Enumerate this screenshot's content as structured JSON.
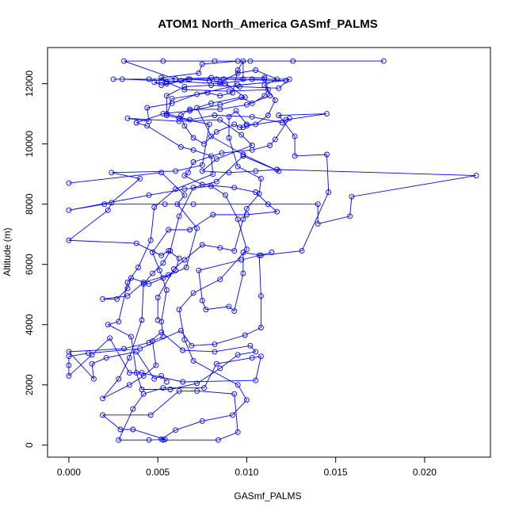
{
  "chart_data": {
    "type": "line",
    "title": "ATOM1 North_America GASmf_PALMS",
    "xlabel": "GASmf_PALMS",
    "ylabel": "Altitude (m)",
    "xlim": [
      -0.0012,
      0.0237
    ],
    "ylim": [
      -400,
      13200
    ],
    "x_ticks": [
      0.0,
      0.005,
      0.01,
      0.015,
      0.02
    ],
    "x_tick_labels": [
      "0.000",
      "0.005",
      "0.010",
      "0.015",
      "0.020"
    ],
    "y_ticks": [
      0,
      2000,
      4000,
      6000,
      8000,
      10000,
      12000
    ],
    "y_tick_labels": [
      "0",
      "2000",
      "4000",
      "6000",
      "8000",
      "10000",
      "12000"
    ],
    "grid": false,
    "marker": "open-circle",
    "color": "#0000ff",
    "series": [
      {
        "points": [
          [
            0.0053,
            170
          ],
          [
            0.0084,
            170
          ],
          [
            0.0095,
            430
          ],
          [
            0.0093,
            1700
          ],
          [
            0.0072,
            1800
          ],
          [
            0.0062,
            1800
          ],
          [
            0.0046,
            1000
          ],
          [
            0.0019,
            1000
          ],
          [
            0.0029,
            520
          ],
          [
            0.0036,
            520
          ],
          [
            0.0054,
            190
          ],
          [
            0.0045,
            170
          ],
          [
            0.0028,
            170
          ],
          [
            0.0036,
            1200
          ],
          [
            0.0042,
            1700
          ],
          [
            0.0053,
            1900
          ],
          [
            0.0076,
            1900
          ],
          [
            0.0083,
            2700
          ],
          [
            0.0103,
            2900
          ],
          [
            0.0108,
            2950
          ],
          [
            0.0105,
            2150
          ],
          [
            0.0064,
            2100
          ],
          [
            0.0041,
            2400
          ],
          [
            0.0034,
            2400
          ],
          [
            0.0023,
            3550
          ],
          [
            0.0013,
            3000
          ],
          [
            0.0,
            2300
          ],
          [
            0.0,
            2650
          ],
          [
            0.0,
            2950
          ],
          [
            0.0011,
            3050
          ],
          [
            0.004,
            3200
          ],
          [
            0.0063,
            3800
          ],
          [
            0.0069,
            3300
          ],
          [
            0.0082,
            3350
          ],
          [
            0.0099,
            3650
          ],
          [
            0.0108,
            3900
          ],
          [
            0.0108,
            4950
          ],
          [
            0.0107,
            6300
          ],
          [
            0.0114,
            6400
          ],
          [
            0.0097,
            6150
          ],
          [
            0.0073,
            5800
          ],
          [
            0.0075,
            4800
          ],
          [
            0.0077,
            4500
          ],
          [
            0.009,
            4600
          ],
          [
            0.0093,
            4450
          ],
          [
            0.0098,
            5700
          ],
          [
            0.0098,
            6400
          ],
          [
            0.0108,
            6300
          ],
          [
            0.0131,
            6450
          ],
          [
            0.0146,
            8400
          ],
          [
            0.0145,
            9650
          ],
          [
            0.0127,
            9600
          ],
          [
            0.0127,
            10250
          ],
          [
            0.0118,
            10950
          ],
          [
            0.0145,
            11000
          ],
          [
            0.0122,
            10800
          ],
          [
            0.01,
            10600
          ],
          [
            0.0098,
            10550
          ],
          [
            0.0096,
            10550
          ],
          [
            0.0093,
            10650
          ],
          [
            0.0083,
            10400
          ],
          [
            0.0076,
            10000
          ],
          [
            0.007,
            10200
          ],
          [
            0.0065,
            10600
          ],
          [
            0.0063,
            10950
          ],
          [
            0.0068,
            11150
          ],
          [
            0.0085,
            11150
          ],
          [
            0.01,
            11300
          ],
          [
            0.0113,
            11600
          ],
          [
            0.011,
            12200
          ],
          [
            0.008,
            12200
          ],
          [
            0.006,
            12150
          ],
          [
            0.0045,
            12150
          ],
          [
            0.0025,
            12150
          ],
          [
            0.003,
            12150
          ],
          [
            0.0052,
            12100
          ],
          [
            0.0085,
            12000
          ],
          [
            0.0103,
            12150
          ],
          [
            0.011,
            12150
          ],
          [
            0.0124,
            12150
          ],
          [
            0.0118,
            11850
          ],
          [
            0.0096,
            11900
          ],
          [
            0.008,
            11950
          ],
          [
            0.0065,
            11900
          ],
          [
            0.0055,
            11600
          ],
          [
            0.0055,
            11000
          ],
          [
            0.0068,
            10800
          ],
          [
            0.0082,
            10950
          ],
          [
            0.0103,
            10900
          ],
          [
            0.012,
            10700
          ],
          [
            0.0124,
            10850
          ],
          [
            0.0116,
            10150
          ],
          [
            0.0113,
            9950
          ],
          [
            0.0103,
            9800
          ],
          [
            0.0086,
            9700
          ],
          [
            0.007,
            9400
          ],
          [
            0.0067,
            9050
          ],
          [
            0.0065,
            8950
          ],
          [
            0.0075,
            8650
          ],
          [
            0.0093,
            8550
          ],
          [
            0.0105,
            8400
          ],
          [
            0.0112,
            8000
          ],
          [
            0.0117,
            7750
          ],
          [
            0.01,
            7650
          ],
          [
            0.0081,
            7650
          ],
          [
            0.0068,
            7150
          ],
          [
            0.0056,
            7150
          ],
          [
            0.0047,
            6400
          ],
          [
            0.0051,
            5800
          ],
          [
            0.0055,
            5150
          ],
          [
            0.0052,
            4100
          ],
          [
            0.0053,
            3600
          ],
          [
            0.0047,
            3450
          ],
          [
            0.0049,
            2650
          ],
          [
            0.0042,
            2300
          ],
          [
            0.0034,
            2000
          ],
          [
            0.0019,
            1550
          ],
          [
            0.0028,
            2200
          ],
          [
            0.0034,
            2900
          ],
          [
            0.0041,
            4150
          ],
          [
            0.0042,
            5350
          ],
          [
            0.0047,
            5700
          ],
          [
            0.0053,
            6050
          ],
          [
            0.0057,
            6450
          ],
          [
            0.0062,
            7600
          ],
          [
            0.007,
            8550
          ],
          [
            0.0083,
            8750
          ],
          [
            0.0098,
            9600
          ],
          [
            0.0118,
            9100
          ],
          [
            0.0098,
            9650
          ],
          [
            0.008,
            10250
          ],
          [
            0.0072,
            11200
          ],
          [
            0.008,
            11350
          ],
          [
            0.0097,
            11550
          ],
          [
            0.0103,
            11350
          ],
          [
            0.011,
            11600
          ],
          [
            0.0112,
            11800
          ],
          [
            0.009,
            11750
          ],
          [
            0.0065,
            11800
          ],
          [
            0.0055,
            12050
          ],
          [
            0.0052,
            12200
          ],
          [
            0.0073,
            12350
          ],
          [
            0.0075,
            12650
          ],
          [
            0.0095,
            12750
          ],
          [
            0.0126,
            12750
          ],
          [
            0.0177,
            12750
          ],
          [
            0.0102,
            12750
          ],
          [
            0.0082,
            12750
          ],
          [
            0.0053,
            12750
          ],
          [
            0.0031,
            12750
          ],
          [
            0.006,
            12150
          ],
          [
            0.0087,
            12150
          ],
          [
            0.0122,
            12100
          ],
          [
            0.0095,
            11950
          ],
          [
            0.0072,
            11650
          ],
          [
            0.0058,
            11350
          ],
          [
            0.0044,
            11200
          ],
          [
            0.0045,
            10750
          ],
          [
            0.0033,
            10850
          ],
          [
            0.0062,
            10750
          ],
          [
            0.0085,
            10800
          ],
          [
            0.0097,
            10300
          ],
          [
            0.0103,
            9950
          ],
          [
            0.0083,
            9500
          ],
          [
            0.0075,
            9100
          ],
          [
            0.009,
            9050
          ],
          [
            0.0105,
            9100
          ],
          [
            0.0117,
            9150
          ],
          [
            0.0229,
            8950
          ],
          [
            0.0159,
            8250
          ],
          [
            0.0158,
            7600
          ],
          [
            0.014,
            7350
          ],
          [
            0.014,
            8000
          ],
          [
            0.007,
            8000
          ],
          [
            0.0054,
            8000
          ],
          [
            0.002,
            8000
          ],
          [
            0.0,
            7800
          ],
          [
            0.0045,
            8300
          ],
          [
            0.0065,
            8500
          ],
          [
            0.008,
            8600
          ],
          [
            0.0088,
            8300
          ],
          [
            0.0095,
            7500
          ],
          [
            0.01,
            6500
          ],
          [
            0.0085,
            5500
          ],
          [
            0.007,
            5050
          ],
          [
            0.0062,
            4500
          ],
          [
            0.0065,
            3500
          ],
          [
            0.007,
            2800
          ],
          [
            0.0095,
            2000
          ],
          [
            0.01,
            1500
          ],
          [
            0.0092,
            1000
          ],
          [
            0.0075,
            800
          ],
          [
            0.006,
            500
          ],
          [
            0.0052,
            200
          ]
        ]
      },
      {
        "points": [
          [
            0.0,
            8700
          ],
          [
            0.0052,
            9050
          ],
          [
            0.0065,
            8300
          ],
          [
            0.0061,
            8000
          ],
          [
            0.0072,
            7200
          ],
          [
            0.0066,
            5900
          ],
          [
            0.0053,
            5550
          ],
          [
            0.0045,
            5350
          ],
          [
            0.0035,
            5550
          ],
          [
            0.0033,
            5200
          ],
          [
            0.0027,
            4850
          ],
          [
            0.0019,
            4850
          ],
          [
            0.0033,
            4950
          ],
          [
            0.0042,
            5400
          ],
          [
            0.0056,
            5650
          ],
          [
            0.006,
            5800
          ],
          [
            0.0062,
            6200
          ],
          [
            0.0056,
            6450
          ],
          [
            0.0052,
            6300
          ],
          [
            0.0038,
            6700
          ],
          [
            0.0,
            6800
          ],
          [
            0.0022,
            7800
          ],
          [
            0.0024,
            8050
          ],
          [
            0.004,
            8850
          ],
          [
            0.0024,
            9050
          ],
          [
            0.006,
            9100
          ],
          [
            0.0075,
            9300
          ],
          [
            0.0079,
            10650
          ],
          [
            0.0062,
            10850
          ],
          [
            0.0055,
            10950
          ],
          [
            0.0058,
            11500
          ],
          [
            0.0078,
            11700
          ],
          [
            0.0085,
            11600
          ],
          [
            0.0092,
            11700
          ],
          [
            0.0095,
            12450
          ],
          [
            0.0098,
            12750
          ],
          [
            0.0098,
            12150
          ],
          [
            0.0083,
            12150
          ],
          [
            0.0067,
            12150
          ],
          [
            0.0063,
            12100
          ],
          [
            0.0055,
            12000
          ],
          [
            0.0048,
            12050
          ],
          [
            0.0052,
            11950
          ],
          [
            0.0068,
            12150
          ],
          [
            0.0079,
            12100
          ],
          [
            0.0088,
            12000
          ],
          [
            0.0099,
            11550
          ],
          [
            0.0085,
            11300
          ],
          [
            0.0068,
            11100
          ],
          [
            0.0053,
            11000
          ],
          [
            0.0038,
            10700
          ],
          [
            0.0044,
            10600
          ],
          [
            0.0063,
            9900
          ],
          [
            0.007,
            9800
          ],
          [
            0.008,
            9600
          ],
          [
            0.0081,
            9000
          ],
          [
            0.006,
            8500
          ],
          [
            0.0048,
            7900
          ],
          [
            0.0046,
            6800
          ],
          [
            0.0039,
            5900
          ],
          [
            0.0033,
            5400
          ],
          [
            0.0028,
            4100
          ],
          [
            0.0022,
            4000
          ],
          [
            0.0035,
            3600
          ],
          [
            0.0038,
            2400
          ],
          [
            0.0041,
            1850
          ],
          [
            0.0057,
            1850
          ],
          [
            0.0072,
            2050
          ],
          [
            0.0085,
            2550
          ],
          [
            0.0095,
            3000
          ],
          [
            0.0105,
            3100
          ],
          [
            0.0102,
            3300
          ],
          [
            0.0082,
            3100
          ],
          [
            0.0064,
            3150
          ],
          [
            0.0052,
            3750
          ],
          [
            0.0045,
            3400
          ],
          [
            0.0031,
            3200
          ],
          [
            0.0,
            3100
          ],
          [
            0.0014,
            2200
          ],
          [
            0.0013,
            2700
          ],
          [
            0.0021,
            2900
          ],
          [
            0.0038,
            3100
          ],
          [
            0.0048,
            2200
          ],
          [
            0.0052,
            2300
          ],
          [
            0.0055,
            2100
          ]
        ]
      },
      {
        "points": [
          [
            0.005,
            4150
          ],
          [
            0.005,
            4900
          ],
          [
            0.0059,
            5850
          ],
          [
            0.0065,
            6150
          ],
          [
            0.0075,
            6650
          ],
          [
            0.0085,
            6550
          ],
          [
            0.0093,
            6450
          ],
          [
            0.0098,
            7500
          ],
          [
            0.01,
            7850
          ],
          [
            0.0107,
            8350
          ],
          [
            0.0108,
            8850
          ],
          [
            0.0095,
            9250
          ],
          [
            0.009,
            10200
          ],
          [
            0.009,
            10900
          ],
          [
            0.0094,
            11100
          ],
          [
            0.01,
            10650
          ],
          [
            0.0105,
            10650
          ],
          [
            0.0112,
            10950
          ],
          [
            0.0116,
            11450
          ],
          [
            0.011,
            11950
          ],
          [
            0.0117,
            12150
          ],
          [
            0.0105,
            12450
          ],
          [
            0.0095,
            12350
          ],
          [
            0.0085,
            12050
          ]
        ]
      }
    ]
  }
}
